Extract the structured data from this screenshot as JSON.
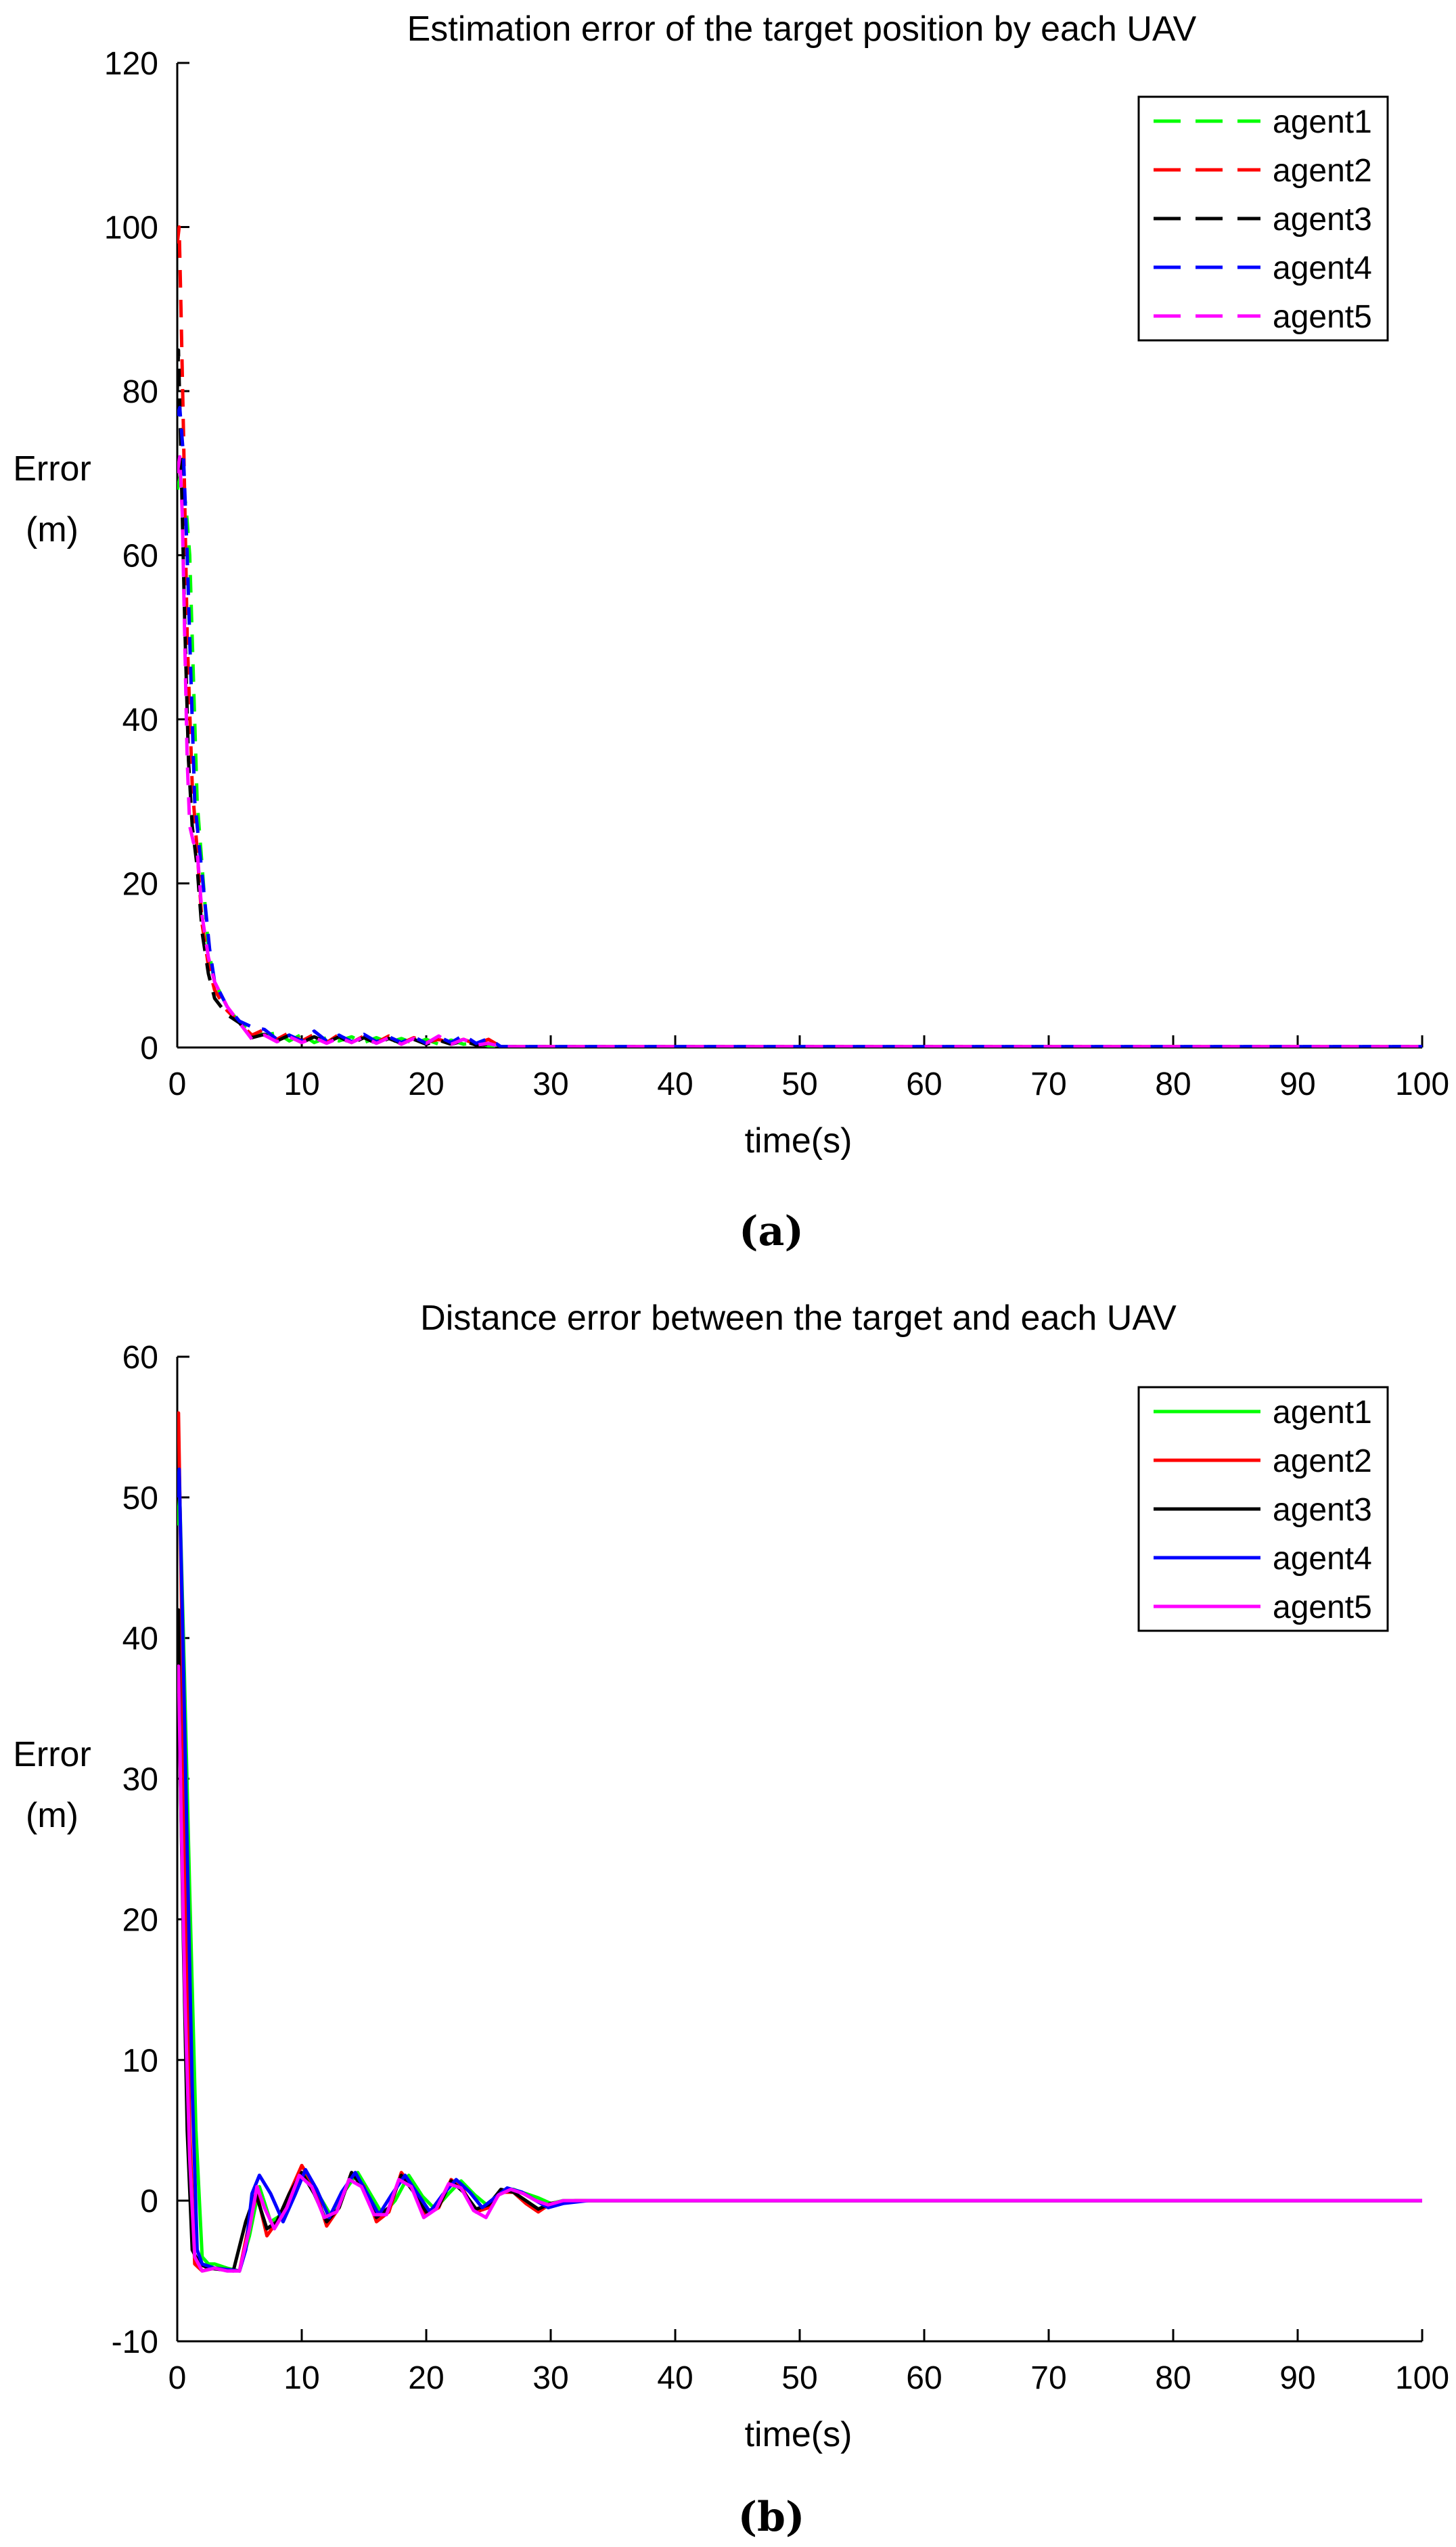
{
  "panels": [
    {
      "caption_letter": "a",
      "chart_data": {
        "type": "line",
        "title": "Estimation error of the target position by each UAV",
        "xlabel": "time(s)",
        "ylabel": [
          "Error",
          "(m)"
        ],
        "xlim": [
          0,
          100
        ],
        "ylim": [
          0,
          120
        ],
        "xticks": [
          0,
          10,
          20,
          30,
          40,
          50,
          60,
          70,
          80,
          90,
          100
        ],
        "yticks": [
          0,
          20,
          40,
          60,
          80,
          100,
          120
        ],
        "line_style": "dashed",
        "grid": false,
        "legend_position": "top-right",
        "series": [
          {
            "name": "agent1",
            "color": "#00ff00",
            "x": [
              0,
              0.3,
              0.7,
              1.0,
              1.3,
              1.6,
              2.0,
              2.5,
              3.0,
              4.0,
              5.0,
              6.0,
              7.0,
              8.0,
              9.0,
              10.0,
              11.0,
              12.0,
              13.0,
              14.0,
              15.0,
              16.0,
              17.0,
              18.0,
              19.0,
              20.0,
              21.0,
              22.0,
              23.0,
              24.0,
              25.0,
              26.0,
              30,
              40,
              50,
              60,
              70,
              80,
              90,
              100
            ],
            "y": [
              68,
              70,
              66,
              60,
              45,
              30,
              22,
              12,
              8,
              5,
              3,
              2,
              1.5,
              1.8,
              0.8,
              1.6,
              0.6,
              1.2,
              0.8,
              1.3,
              0.6,
              1.2,
              0.6,
              1.1,
              0.5,
              1.0,
              0.4,
              0.9,
              0.4,
              0.6,
              0.2,
              0.1,
              0.1,
              0.1,
              0.1,
              0.1,
              0.1,
              0.1,
              0.1,
              0.1
            ]
          },
          {
            "name": "agent2",
            "color": "#ff0000",
            "x": [
              0,
              0.15,
              0.3,
              0.5,
              0.8,
              1.2,
              1.6,
              2.0,
              2.5,
              3.0,
              4.0,
              5.0,
              6.0,
              7.0,
              8.0,
              9.0,
              10.0,
              11.0,
              12.0,
              13.0,
              14.0,
              15.0,
              16.0,
              17.0,
              18.0,
              19.0,
              20.0,
              21.0,
              22.0,
              23.0,
              24.0,
              25.0,
              26.0,
              30,
              40,
              50,
              60,
              70,
              80,
              90,
              100
            ],
            "y": [
              98,
              100,
              90,
              75,
              50,
              32,
              24,
              15,
              10,
              7,
              4.5,
              3,
              1.5,
              2.2,
              1.0,
              1.8,
              0.8,
              1.6,
              0.6,
              1.6,
              0.6,
              1.4,
              0.6,
              1.4,
              0.5,
              1.2,
              0.6,
              1.0,
              0.5,
              1.0,
              0.4,
              1.0,
              0.1,
              0.1,
              0.1,
              0.1,
              0.1,
              0.1,
              0.1,
              0.1,
              0.1
            ]
          },
          {
            "name": "agent3",
            "color": "#000000",
            "x": [
              0,
              0.1,
              0.3,
              0.6,
              0.9,
              1.2,
              1.6,
              2.0,
              2.5,
              3.0,
              4.0,
              5.0,
              6.0,
              7.0,
              8.0,
              9.0,
              10.0,
              11.0,
              12.0,
              13.0,
              14.0,
              15.0,
              16.0,
              17.0,
              18.0,
              19.0,
              20.0,
              21.0,
              22.0,
              23.0,
              24.0,
              25.0,
              26.0,
              30,
              40,
              50,
              60,
              70,
              80,
              90,
              100
            ],
            "y": [
              80,
              85,
              72,
              52,
              35,
              27,
              22,
              14,
              9,
              6,
              4,
              3,
              1.2,
              1.6,
              0.8,
              1.5,
              0.6,
              1.3,
              0.6,
              1.3,
              0.5,
              1.2,
              0.5,
              1.1,
              0.5,
              1.0,
              0.4,
              0.9,
              0.4,
              0.8,
              0.3,
              0.4,
              0.1,
              0.1,
              0.1,
              0.1,
              0.1,
              0.1,
              0.1,
              0.1,
              0.1
            ]
          },
          {
            "name": "agent4",
            "color": "#0000ff",
            "x": [
              0,
              0.2,
              0.5,
              0.8,
              1.1,
              1.4,
              1.8,
              2.2,
              2.6,
              3.0,
              4.0,
              5.0,
              6.0,
              7.0,
              8.0,
              9.0,
              10.0,
              11.0,
              12.0,
              13.0,
              14.0,
              15.0,
              16.0,
              17.0,
              18.0,
              19.0,
              20.0,
              21.0,
              22.0,
              23.0,
              24.0,
              25.0,
              26.0,
              30,
              40,
              50,
              60,
              70,
              80,
              90,
              100
            ],
            "y": [
              77,
              78,
              72,
              60,
              45,
              30,
              24,
              18,
              12,
              8,
              5,
              3.2,
              2.5,
              2.2,
              1.0,
              1.5,
              0.8,
              2.0,
              0.8,
              1.5,
              0.7,
              1.6,
              0.7,
              1.3,
              0.6,
              1.3,
              0.5,
              1.3,
              0.6,
              1.5,
              0.5,
              1.1,
              0.1,
              0.1,
              0.1,
              0.1,
              0.1,
              0.1,
              0.1,
              0.1,
              0.1
            ]
          },
          {
            "name": "agent5",
            "color": "#ff00ff",
            "x": [
              0,
              0.2,
              0.4,
              0.6,
              0.8,
              1.0,
              1.3,
              1.6,
              2.0,
              2.5,
              3.0,
              4.0,
              5.0,
              6.0,
              7.0,
              8.0,
              9.0,
              10.0,
              11.0,
              12.0,
              13.0,
              14.0,
              15.0,
              16.0,
              17.0,
              18.0,
              19.0,
              20.0,
              21.0,
              22.0,
              23.0,
              24.0,
              25.0,
              26.0,
              30,
              40,
              50,
              60,
              70,
              80,
              90,
              100
            ],
            "y": [
              70,
              72,
              65,
              50,
              35,
              27,
              25,
              24,
              16,
              11,
              8,
              5,
              3,
              1.0,
              1.5,
              0.7,
              1.3,
              0.6,
              1.2,
              0.5,
              1.2,
              0.6,
              1.3,
              0.5,
              1.2,
              0.4,
              1.1,
              0.5,
              1.4,
              0.4,
              1.0,
              0.3,
              0.5,
              0.1,
              0.1,
              0.1,
              0.1,
              0.1,
              0.1,
              0.1,
              0.1,
              0.1
            ]
          }
        ]
      }
    },
    {
      "caption_letter": "b",
      "chart_data": {
        "type": "line",
        "title": "Distance error between the target and each UAV",
        "xlabel": "time(s)",
        "ylabel": [
          "Error",
          "(m)"
        ],
        "xlim": [
          0,
          100
        ],
        "ylim": [
          -10,
          60
        ],
        "xticks": [
          0,
          10,
          20,
          30,
          40,
          50,
          60,
          70,
          80,
          90,
          100
        ],
        "yticks": [
          -10,
          0,
          10,
          20,
          30,
          40,
          50,
          60
        ],
        "line_style": "solid",
        "grid": false,
        "legend_position": "top-right",
        "series": [
          {
            "name": "agent1",
            "color": "#00ff00",
            "x": [
              0,
              0.2,
              0.5,
              1.0,
              1.5,
              2.0,
              2.5,
              3,
              4,
              5,
              5.8,
              6.6,
              7.5,
              8.4,
              9.3,
              10.3,
              11.3,
              12.3,
              13.3,
              14.5,
              15.5,
              16.5,
              17.5,
              18.6,
              19.7,
              20.7,
              21.8,
              22.8,
              23.9,
              25,
              26,
              27,
              28,
              29,
              30,
              31,
              33,
              40,
              50,
              60,
              70,
              80,
              90,
              100
            ],
            "y": [
              48,
              50,
              40,
              22,
              5,
              -4,
              -4.5,
              -4.5,
              -4.8,
              -5,
              -2.5,
              1.0,
              -1.5,
              -1.0,
              0.5,
              2.0,
              0.5,
              -1.0,
              0.5,
              2.0,
              0.5,
              -1.0,
              0.0,
              1.8,
              0.3,
              -0.6,
              0.5,
              1.4,
              0.4,
              -0.4,
              0.6,
              0.8,
              0.5,
              0.2,
              -0.2,
              0.0,
              0.0,
              0.0,
              0.0,
              0.0,
              0.0,
              0.0,
              0.0,
              0.0
            ]
          },
          {
            "name": "agent2",
            "color": "#ff0000",
            "x": [
              0,
              0.1,
              0.3,
              0.6,
              1.0,
              1.4,
              2.0,
              3,
              4,
              5,
              5.8,
              6.4,
              7.2,
              8.0,
              9.0,
              10.0,
              11.0,
              12.0,
              13.0,
              14.0,
              15.0,
              16.0,
              17.0,
              18.0,
              19.0,
              20.0,
              21.0,
              22.0,
              23.0,
              24.0,
              25.0,
              26.0,
              27.0,
              28.0,
              29.0,
              30.0,
              32.0,
              40,
              50,
              60,
              70,
              80,
              90,
              100
            ],
            "y": [
              54,
              56,
              45,
              25,
              5,
              -4.5,
              -5,
              -4.8,
              -4.9,
              -5,
              -1.5,
              0.5,
              -2.5,
              -1.5,
              0.5,
              2.5,
              1.0,
              -1.8,
              -0.5,
              2.0,
              1.0,
              -1.5,
              -0.8,
              2.0,
              0.8,
              -1.0,
              -0.5,
              1.5,
              0.7,
              -0.8,
              -0.5,
              0.6,
              0.6,
              -0.2,
              -0.8,
              -0.2,
              0.0,
              0.0,
              0.0,
              0.0,
              0.0,
              0.0,
              0.0,
              0.0
            ]
          },
          {
            "name": "agent3",
            "color": "#000000",
            "x": [
              0,
              0.1,
              0.25,
              0.5,
              0.8,
              1.2,
              1.8,
              2.5,
              3.5,
              4.5,
              5.5,
              6.3,
              7.2,
              8.0,
              9.0,
              10.0,
              11.0,
              12.0,
              13.0,
              14.0,
              15.0,
              16.0,
              17.0,
              18.0,
              19.0,
              20.0,
              21.0,
              22.0,
              23.0,
              24.0,
              25.0,
              26.0,
              27.0,
              28.0,
              29.0,
              30.0,
              32.0,
              40,
              50,
              60,
              70,
              80,
              90,
              100
            ],
            "y": [
              40,
              42,
              30,
              18,
              5,
              -3.5,
              -4.5,
              -4.8,
              -4.9,
              -5,
              -1.5,
              0.5,
              -2.0,
              -1.5,
              0.5,
              2.0,
              0.5,
              -1.5,
              -0.5,
              2.0,
              0.8,
              -1.2,
              -0.5,
              1.8,
              0.6,
              -0.8,
              -0.4,
              1.4,
              0.6,
              -0.6,
              -0.3,
              0.8,
              0.6,
              0.0,
              -0.6,
              -0.2,
              0.0,
              0.0,
              0.0,
              0.0,
              0.0,
              0.0,
              0.0,
              0.0
            ]
          },
          {
            "name": "agent4",
            "color": "#0000ff",
            "x": [
              0,
              0.15,
              0.4,
              0.8,
              1.2,
              1.6,
              2.0,
              3,
              4,
              5,
              5.5,
              6.0,
              6.6,
              7.5,
              8.5,
              9.5,
              10.3,
              11.2,
              12.2,
              13.2,
              14.3,
              15.2,
              16.2,
              17.2,
              18.3,
              19.3,
              20.3,
              21.3,
              22.4,
              23.5,
              24.5,
              25.5,
              26.5,
              27.7,
              28.8,
              29.8,
              31,
              33,
              40,
              50,
              60,
              70,
              80,
              90,
              100
            ],
            "y": [
              50,
              52,
              42,
              25,
              8,
              -3.5,
              -4.5,
              -4.8,
              -4.9,
              -5,
              -3.5,
              0.5,
              1.8,
              0.5,
              -1.5,
              0.5,
              2.2,
              0.8,
              -1.2,
              0.6,
              2.0,
              0.6,
              -1.0,
              0.4,
              1.8,
              0.5,
              -0.8,
              0.4,
              1.5,
              0.6,
              -0.5,
              0.2,
              0.9,
              0.6,
              0.0,
              -0.5,
              -0.2,
              0.0,
              0.0,
              0.0,
              0.0,
              0.0,
              0.0,
              0.0,
              0.0
            ]
          },
          {
            "name": "agent5",
            "color": "#ff00ff",
            "x": [
              0,
              0.1,
              0.3,
              0.6,
              1.0,
              1.4,
              2.0,
              3,
              4,
              5,
              5.8,
              6.4,
              7.0,
              7.8,
              8.8,
              9.8,
              10.8,
              11.8,
              12.8,
              13.8,
              14.8,
              15.8,
              16.8,
              17.8,
              18.8,
              19.8,
              20.8,
              21.8,
              22.8,
              23.8,
              24.8,
              25.8,
              26.8,
              27.8,
              28.8,
              29.8,
              31,
              40,
              50,
              60,
              70,
              80,
              90,
              100
            ],
            "y": [
              36,
              38,
              28,
              15,
              3,
              -4,
              -5,
              -4.8,
              -5,
              -5,
              -2.0,
              1.0,
              -0.5,
              -2.0,
              -0.5,
              1.8,
              1.0,
              -1.2,
              -0.8,
              1.5,
              1.0,
              -1.0,
              -1.0,
              1.5,
              1.0,
              -1.2,
              -0.6,
              1.2,
              0.9,
              -0.7,
              -1.2,
              0.4,
              0.8,
              0.5,
              0.0,
              -0.3,
              0.0,
              0.0,
              0.0,
              0.0,
              0.0,
              0.0,
              0.0,
              0.0
            ]
          }
        ]
      }
    }
  ]
}
